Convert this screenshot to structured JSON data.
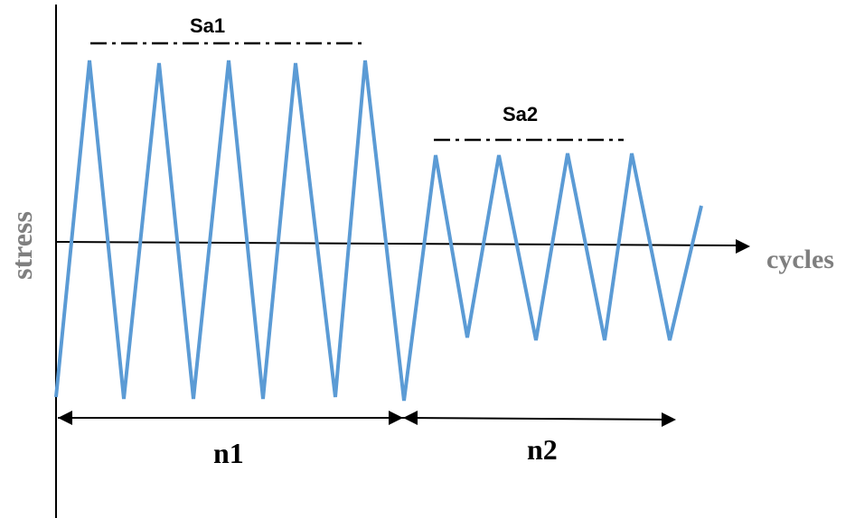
{
  "diagram": {
    "y_axis_label": "stress",
    "x_axis_label": "cycles",
    "amplitude_1_label": "Sa1",
    "amplitude_2_label": "Sa2",
    "block_1_label": "n1",
    "block_2_label": "n2"
  },
  "colors": {
    "wave": "#5b9bd5",
    "axis": "#000000",
    "axis_label": "#7f7f7f"
  }
}
